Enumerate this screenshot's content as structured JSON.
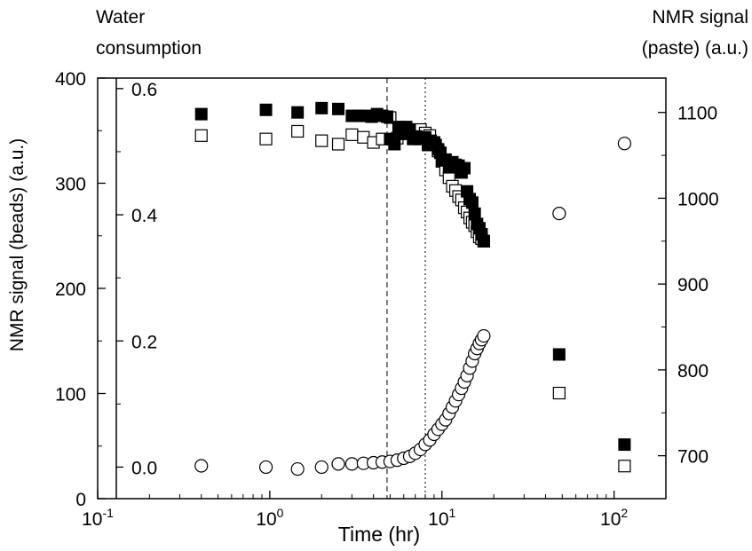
{
  "chart_data": {
    "type": "scatter",
    "x_scale": "log",
    "xlim": [
      0.1,
      200
    ],
    "xlabel": "Time (hr)",
    "x_ticks": [
      {
        "value": 0.1,
        "base": "10",
        "exp": "-1"
      },
      {
        "value": 1,
        "base": "10",
        "exp": "0"
      },
      {
        "value": 10,
        "base": "10",
        "exp": "1"
      },
      {
        "value": 100,
        "base": "10",
        "exp": "2"
      }
    ],
    "y_left": {
      "label": "NMR signal (beads) (a.u.)",
      "lim": [
        0,
        400
      ],
      "ticks": [
        "0",
        "100",
        "200",
        "300",
        "400"
      ]
    },
    "y_inner": {
      "label_line1": "Water",
      "label_line2": "consumption",
      "ticks": [
        {
          "label": "0.0",
          "at_left": 30
        },
        {
          "label": "0.2",
          "at_left": 150
        },
        {
          "label": "0.4",
          "at_left": 270
        },
        {
          "label": "0.6",
          "at_left": 390
        }
      ]
    },
    "y_right": {
      "label_line1": "NMR signal",
      "label_line2": "(paste) (a.u.)",
      "lim": [
        650,
        1140
      ],
      "ticks": [
        "700",
        "800",
        "900",
        "1000",
        "1100"
      ]
    },
    "vlines": [
      {
        "x": 4.8,
        "style": "dashed"
      },
      {
        "x": 8.0,
        "style": "dotted"
      }
    ],
    "series": [
      {
        "marker": "filled-square",
        "axis": "right",
        "x": [
          0.4,
          0.95,
          1.45,
          2.0,
          2.5,
          3.0,
          3.3,
          3.6,
          3.9,
          4.2,
          4.5,
          4.8,
          5.0,
          5.3,
          5.6,
          5.9,
          6.2,
          6.5,
          6.8,
          7.1,
          7.4,
          7.7,
          8.0,
          8.3,
          8.6,
          8.9,
          9.2,
          9.5,
          9.8,
          10.1,
          10.5,
          11.0,
          11.5,
          12.0,
          12.5,
          13.0,
          13.5,
          14.0,
          14.5,
          15.0,
          15.5,
          16.0,
          16.5,
          17.0,
          17.5,
          48,
          115
        ],
        "y": [
          1098,
          1103,
          1100,
          1105,
          1104,
          1096,
          1096,
          1096,
          1095,
          1098,
          1096,
          1095,
          1069,
          1063,
          1083,
          1076,
          1083,
          1079,
          1069,
          1072,
          1069,
          1070,
          1071,
          1062,
          1067,
          1065,
          1062,
          1057,
          1053,
          1044,
          1045,
          1036,
          1042,
          1039,
          1038,
          1030,
          1035,
          1008,
          999,
          995,
          982,
          970,
          965,
          958,
          950,
          818,
          713
        ]
      },
      {
        "marker": "open-square",
        "axis": "right",
        "x": [
          0.4,
          0.95,
          1.45,
          2.0,
          2.5,
          3.0,
          3.5,
          4.0,
          4.5,
          5.0,
          5.5,
          6.0,
          6.5,
          7.0,
          7.5,
          8.0,
          8.5,
          9.0,
          9.5,
          10.0,
          10.5,
          11.0,
          11.5,
          12.0,
          12.5,
          13.0,
          13.5,
          14.0,
          14.5,
          15.0,
          15.5,
          16.0,
          16.5,
          17.0,
          17.5,
          48,
          115
        ],
        "y": [
          1073,
          1069,
          1078,
          1067,
          1063,
          1074,
          1071,
          1065,
          1069,
          1094,
          1070,
          1075,
          1080,
          1074,
          1080,
          1076,
          1073,
          1065,
          1055,
          1043,
          1033,
          1024,
          1014,
          1009,
          1002,
          998,
          989,
          984,
          977,
          972,
          968,
          961,
          955,
          953,
          950,
          773,
          688
        ]
      },
      {
        "marker": "open-circle",
        "axis": "inner",
        "x": [
          0.4,
          0.95,
          1.45,
          2.0,
          2.5,
          3.0,
          3.5,
          4.0,
          4.5,
          5.0,
          5.5,
          6.0,
          6.5,
          7.0,
          7.5,
          8.0,
          8.5,
          9.0,
          9.5,
          10.0,
          10.5,
          11.0,
          11.5,
          12.0,
          12.5,
          13.0,
          13.5,
          14.0,
          14.5,
          15.0,
          15.5,
          16.0,
          16.5,
          17.0,
          17.5,
          48,
          115
        ],
        "y": [
          0.002,
          0.0,
          -0.003,
          0.0,
          0.005,
          0.005,
          0.006,
          0.007,
          0.008,
          0.009,
          0.011,
          0.014,
          0.017,
          0.022,
          0.028,
          0.036,
          0.043,
          0.052,
          0.06,
          0.068,
          0.075,
          0.085,
          0.095,
          0.105,
          0.115,
          0.125,
          0.135,
          0.145,
          0.157,
          0.168,
          0.18,
          0.188,
          0.196,
          0.202,
          0.208,
          0.402,
          0.513
        ]
      }
    ]
  }
}
